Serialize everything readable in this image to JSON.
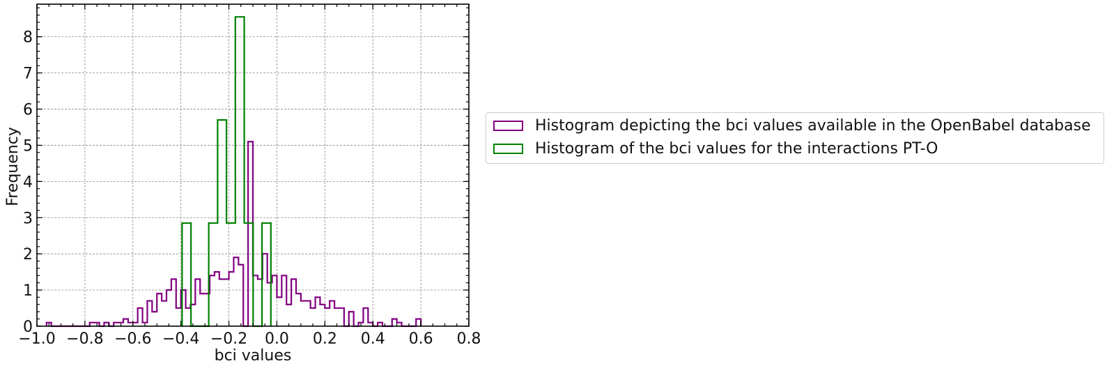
{
  "chart_data": {
    "type": "histogram",
    "xlabel": "bci values",
    "ylabel": "Frequency",
    "xlim": [
      -1.0,
      0.8
    ],
    "ylim": [
      0,
      8.9
    ],
    "x_ticks": [
      -1.0,
      -0.8,
      -0.6,
      -0.4,
      -0.2,
      0.0,
      0.2,
      0.4,
      0.6,
      0.8
    ],
    "x_tick_labels": [
      "−1.0",
      "−0.8",
      "−0.6",
      "−0.4",
      "−0.2",
      "0.0",
      "0.2",
      "0.4",
      "0.6",
      "0.8"
    ],
    "y_ticks": [
      0,
      1,
      2,
      3,
      4,
      5,
      6,
      7,
      8
    ],
    "y_tick_labels": [
      "0",
      "1",
      "2",
      "3",
      "4",
      "5",
      "6",
      "7",
      "8"
    ],
    "grid": true,
    "legend_position": "outside-right",
    "series": [
      {
        "name": "Histogram depicting the bci values available in the OpenBabel database",
        "color": "#800080",
        "bin_start": -0.96,
        "bin_width": 0.02,
        "values": [
          0.1,
          0,
          0,
          0,
          0,
          0,
          0,
          0,
          0,
          0.1,
          0.1,
          0,
          0.1,
          0,
          0.1,
          0.1,
          0.2,
          0.1,
          0.1,
          0.5,
          0.1,
          0.7,
          0.4,
          0.9,
          0.7,
          1.0,
          1.3,
          0.5,
          1.0,
          0.5,
          0.6,
          1.3,
          0.9,
          0.9,
          1.4,
          1.5,
          1.3,
          1.3,
          1.5,
          1.9,
          1.7,
          0,
          5.1,
          1.4,
          1.3,
          2.0,
          1.2,
          1.4,
          0.8,
          1.4,
          0.6,
          1.3,
          0.9,
          0.7,
          0.7,
          0.5,
          0.8,
          0.6,
          0.5,
          0.7,
          0.5,
          0.5,
          0,
          0.4,
          0,
          0.1,
          0.5,
          0.1,
          0,
          0.1,
          0,
          0,
          0.2,
          0.1,
          0,
          0,
          0,
          0.2
        ]
      },
      {
        "name": "Histogram of the bci values for the interactions PT-O",
        "color": "#008000",
        "bin_start": -0.395,
        "bin_width": 0.037,
        "values": [
          2.85,
          0,
          0,
          2.85,
          5.7,
          2.85,
          8.55,
          2.85,
          0,
          2.85
        ]
      }
    ]
  }
}
